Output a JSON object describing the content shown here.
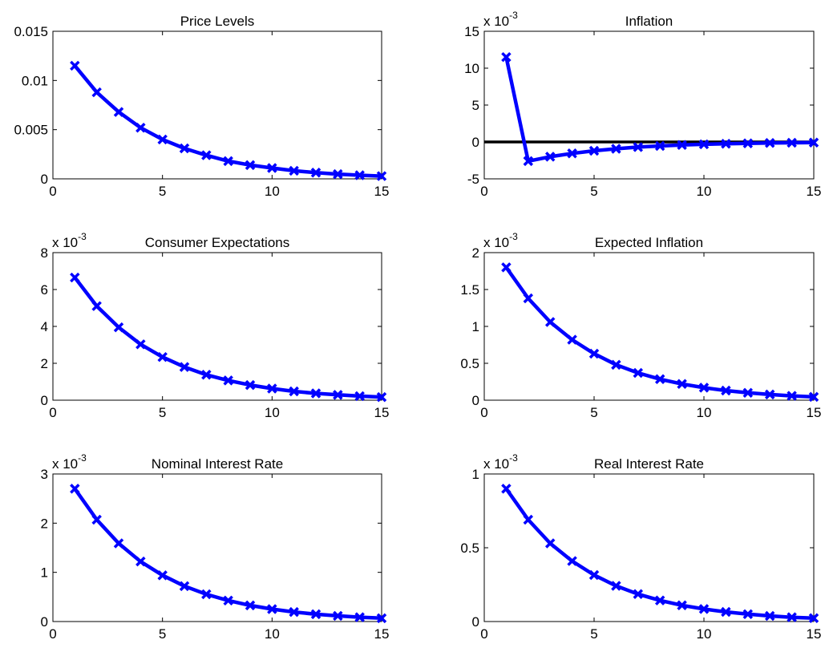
{
  "colors": {
    "series": "#0000ff",
    "zero_line": "#000000",
    "axes": "#000000"
  },
  "chart_data": [
    {
      "type": "line",
      "title": "Price Levels",
      "xlim": [
        0,
        15
      ],
      "ylim": [
        0,
        0.015
      ],
      "xticks": [
        0,
        5,
        10,
        15
      ],
      "xtick_labels": [
        "0",
        "5",
        "10",
        "15"
      ],
      "yticks": [
        0,
        0.005,
        0.01,
        0.015
      ],
      "ytick_labels": [
        "0",
        "0.005",
        "0.01",
        "0.015"
      ],
      "multiplier": "",
      "x": [
        1,
        2,
        3,
        4,
        5,
        6,
        7,
        8,
        9,
        10,
        11,
        12,
        13,
        14,
        15
      ],
      "series": [
        {
          "values": [
            0.0115,
            0.0088,
            0.0068,
            0.0052,
            0.004,
            0.0031,
            0.0024,
            0.0018,
            0.0014,
            0.0011,
            0.00082,
            0.00063,
            0.00048,
            0.00037,
            0.00028
          ]
        }
      ],
      "zero_line": false
    },
    {
      "type": "line",
      "title": "Inflation",
      "xlim": [
        0,
        15
      ],
      "ylim": [
        -5,
        15
      ],
      "xticks": [
        0,
        5,
        10,
        15
      ],
      "xtick_labels": [
        "0",
        "5",
        "10",
        "15"
      ],
      "yticks": [
        -5,
        0,
        5,
        10,
        15
      ],
      "ytick_labels": [
        "-5",
        "0",
        "5",
        "10",
        "15"
      ],
      "multiplier": "x 10-3",
      "x": [
        1,
        2,
        3,
        4,
        5,
        6,
        7,
        8,
        9,
        10,
        11,
        12,
        13,
        14,
        15
      ],
      "series": [
        {
          "values": [
            11.5,
            -2.6,
            -2.0,
            -1.55,
            -1.2,
            -0.92,
            -0.7,
            -0.54,
            -0.41,
            -0.32,
            -0.24,
            -0.19,
            -0.14,
            -0.11,
            -0.08
          ]
        }
      ],
      "zero_line": true
    },
    {
      "type": "line",
      "title": "Consumer Expectations",
      "xlim": [
        0,
        15
      ],
      "ylim": [
        0,
        8
      ],
      "xticks": [
        0,
        5,
        10,
        15
      ],
      "xtick_labels": [
        "0",
        "5",
        "10",
        "15"
      ],
      "yticks": [
        0,
        2,
        4,
        6,
        8
      ],
      "ytick_labels": [
        "0",
        "2",
        "4",
        "6",
        "8"
      ],
      "multiplier": "x 10-3",
      "x": [
        1,
        2,
        3,
        4,
        5,
        6,
        7,
        8,
        9,
        10,
        11,
        12,
        13,
        14,
        15
      ],
      "series": [
        {
          "values": [
            6.65,
            5.1,
            3.95,
            3.03,
            2.34,
            1.8,
            1.38,
            1.07,
            0.82,
            0.63,
            0.48,
            0.37,
            0.29,
            0.22,
            0.17
          ]
        }
      ],
      "zero_line": false
    },
    {
      "type": "line",
      "title": "Expected Inflation",
      "xlim": [
        0,
        15
      ],
      "ylim": [
        0,
        2
      ],
      "xticks": [
        0,
        5,
        10,
        15
      ],
      "xtick_labels": [
        "0",
        "5",
        "10",
        "15"
      ],
      "yticks": [
        0,
        0.5,
        1,
        1.5,
        2
      ],
      "ytick_labels": [
        "0",
        "0.5",
        "1",
        "1.5",
        "2"
      ],
      "multiplier": "x 10-3",
      "x": [
        1,
        2,
        3,
        4,
        5,
        6,
        7,
        8,
        9,
        10,
        11,
        12,
        13,
        14,
        15
      ],
      "series": [
        {
          "values": [
            1.8,
            1.38,
            1.06,
            0.82,
            0.63,
            0.48,
            0.37,
            0.285,
            0.22,
            0.17,
            0.13,
            0.1,
            0.077,
            0.059,
            0.045
          ]
        }
      ],
      "zero_line": false
    },
    {
      "type": "line",
      "title": "Nominal Interest Rate",
      "xlim": [
        0,
        15
      ],
      "ylim": [
        0,
        3
      ],
      "xticks": [
        0,
        5,
        10,
        15
      ],
      "xtick_labels": [
        "0",
        "5",
        "10",
        "15"
      ],
      "yticks": [
        0,
        1,
        2,
        3
      ],
      "ytick_labels": [
        "0",
        "1",
        "2",
        "3"
      ],
      "multiplier": "x 10-3",
      "x": [
        1,
        2,
        3,
        4,
        5,
        6,
        7,
        8,
        9,
        10,
        11,
        12,
        13,
        14,
        15
      ],
      "series": [
        {
          "values": [
            2.7,
            2.07,
            1.59,
            1.22,
            0.94,
            0.72,
            0.555,
            0.427,
            0.328,
            0.252,
            0.194,
            0.149,
            0.115,
            0.088,
            0.068
          ]
        }
      ],
      "zero_line": false
    },
    {
      "type": "line",
      "title": "Real Interest Rate",
      "xlim": [
        0,
        15
      ],
      "ylim": [
        0,
        1
      ],
      "xticks": [
        0,
        5,
        10,
        15
      ],
      "xtick_labels": [
        "0",
        "5",
        "10",
        "15"
      ],
      "yticks": [
        0,
        0.5,
        1
      ],
      "ytick_labels": [
        "0",
        "0.5",
        "1"
      ],
      "multiplier": "x 10-3",
      "x": [
        1,
        2,
        3,
        4,
        5,
        6,
        7,
        8,
        9,
        10,
        11,
        12,
        13,
        14,
        15
      ],
      "series": [
        {
          "values": [
            0.9,
            0.69,
            0.53,
            0.41,
            0.315,
            0.242,
            0.186,
            0.143,
            0.11,
            0.085,
            0.065,
            0.05,
            0.038,
            0.029,
            0.023
          ]
        }
      ],
      "zero_line": false
    }
  ]
}
